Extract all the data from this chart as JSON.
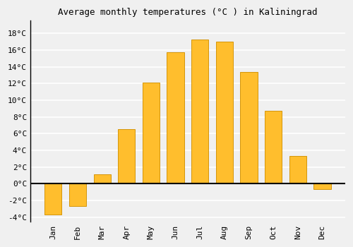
{
  "title": "Average monthly temperatures (°C ) in Kaliningrad",
  "months": [
    "Jan",
    "Feb",
    "Mar",
    "Apr",
    "May",
    "Jun",
    "Jul",
    "Aug",
    "Sep",
    "Oct",
    "Nov",
    "Dec"
  ],
  "values": [
    -3.7,
    -2.7,
    1.1,
    6.5,
    12.1,
    15.7,
    17.3,
    17.0,
    13.4,
    8.7,
    3.3,
    -0.6
  ],
  "bar_color": "#FFBE2D",
  "bar_edge_color": "#D4960A",
  "background_color": "#F0F0F0",
  "grid_color": "#FFFFFF",
  "ylim": [
    -4.5,
    19.5
  ],
  "yticks": [
    -4,
    -2,
    0,
    2,
    4,
    6,
    8,
    10,
    12,
    14,
    16,
    18
  ],
  "title_fontsize": 9,
  "tick_fontsize": 8,
  "bar_width": 0.7
}
